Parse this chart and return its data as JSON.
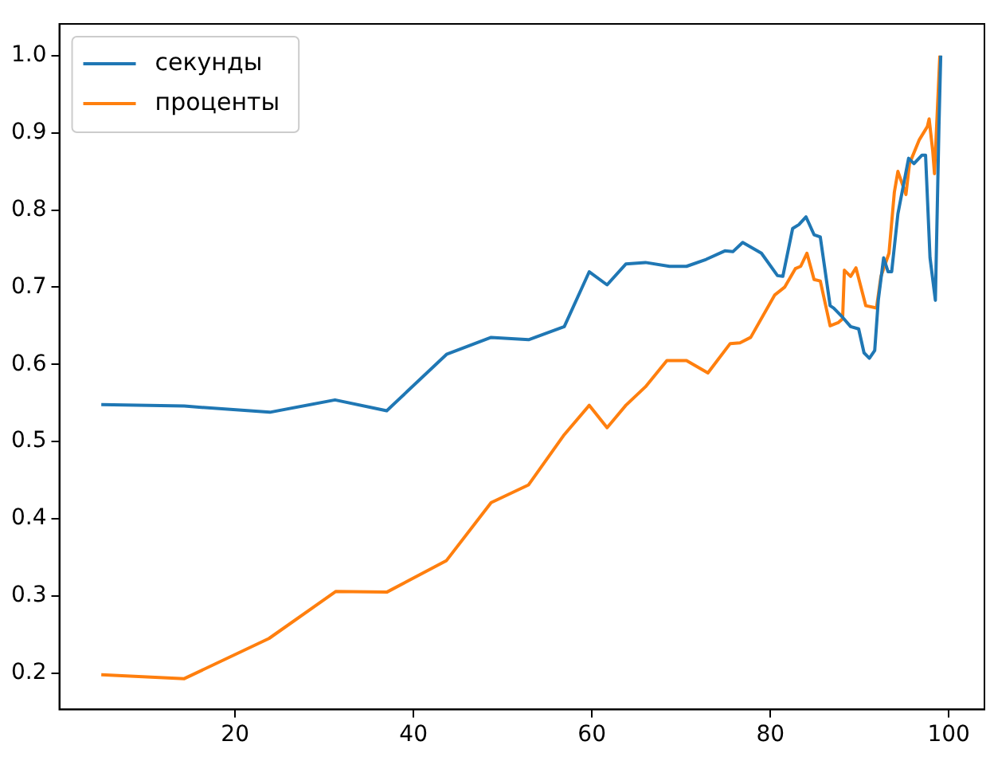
{
  "chart_data": {
    "type": "line",
    "legend": "top left",
    "grid": false,
    "marker": "none",
    "line_style": "solid",
    "xlim": [
      0.3,
      104
    ],
    "xticks": [
      20,
      40,
      60,
      80,
      100
    ],
    "ylim": [
      0.153,
      1.041
    ],
    "yticks": [
      {
        "value": 0.2,
        "label": "0.2"
      },
      {
        "value": 0.3,
        "label": "0.3"
      },
      {
        "value": 0.4,
        "label": "0.4"
      },
      {
        "value": 0.5,
        "label": "0.5"
      },
      {
        "value": 0.6,
        "label": "0.6"
      },
      {
        "value": 0.7,
        "label": "0.7"
      },
      {
        "value": 0.8,
        "label": "0.8"
      },
      {
        "value": 0.9,
        "label": "0.9"
      },
      {
        "value": 1.0,
        "label": "1.0"
      }
    ],
    "series": [
      {
        "name": "секунды",
        "color": "#1f77b4",
        "x": [
          5,
          14.3,
          23.9,
          31.2,
          37,
          43.7,
          48.7,
          52.9,
          56.9,
          59.7,
          61.7,
          63.8,
          66.0,
          68.7,
          70.6,
          72.8,
          74.9,
          75.8,
          76.9,
          79,
          80.8,
          81.4,
          82.5,
          83.2,
          84.0,
          84.9,
          85.6,
          86.7,
          87.1,
          88.1,
          89.0,
          89.9,
          90.5,
          91.1,
          91.7,
          92.1,
          92.7,
          93.2,
          93.6,
          94.3,
          95.5,
          96.1,
          97.0,
          97.4,
          97.9,
          98.5,
          98.9,
          99.1
        ],
        "values": [
          0.548,
          0.546,
          0.538,
          0.554,
          0.54,
          0.613,
          0.635,
          0.632,
          0.649,
          0.72,
          0.703,
          0.73,
          0.732,
          0.727,
          0.727,
          0.736,
          0.747,
          0.746,
          0.758,
          0.744,
          0.715,
          0.714,
          0.776,
          0.781,
          0.791,
          0.768,
          0.765,
          0.676,
          0.673,
          0.661,
          0.649,
          0.646,
          0.615,
          0.608,
          0.618,
          0.683,
          0.738,
          0.72,
          0.72,
          0.795,
          0.867,
          0.86,
          0.871,
          0.871,
          0.738,
          0.683,
          0.908,
          1.0
        ]
      },
      {
        "name": "проценты",
        "color": "#ff7f0e",
        "x": [
          5,
          14.3,
          23.8,
          31.3,
          37,
          43.7,
          48.7,
          52.9,
          56.9,
          59.7,
          61.7,
          63.8,
          66.0,
          68.4,
          70.6,
          73.0,
          75.5,
          76.6,
          77.8,
          80.5,
          81.6,
          82.8,
          83.4,
          84.1,
          84.9,
          85.6,
          86.7,
          87.6,
          88.1,
          88.3,
          89.0,
          89.6,
          90.7,
          91.9,
          92.4,
          93.3,
          93.9,
          94.3,
          95.2,
          95.6,
          96.7,
          97.6,
          97.8,
          98.2,
          98.4,
          99.0
        ],
        "values": [
          0.198,
          0.193,
          0.245,
          0.306,
          0.305,
          0.346,
          0.421,
          0.444,
          0.509,
          0.547,
          0.518,
          0.547,
          0.571,
          0.605,
          0.605,
          0.589,
          0.627,
          0.628,
          0.635,
          0.69,
          0.7,
          0.724,
          0.727,
          0.744,
          0.71,
          0.708,
          0.65,
          0.654,
          0.659,
          0.722,
          0.714,
          0.725,
          0.676,
          0.673,
          0.714,
          0.744,
          0.823,
          0.85,
          0.82,
          0.86,
          0.891,
          0.908,
          0.918,
          0.877,
          0.847,
          1.0
        ]
      }
    ]
  }
}
